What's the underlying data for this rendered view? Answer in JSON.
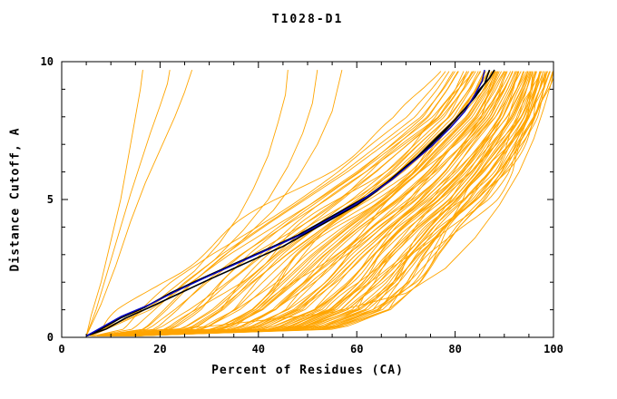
{
  "chart_data": {
    "type": "line",
    "title": "T1028-D1",
    "xlabel": "Percent of Residues (CA)",
    "ylabel": "Distance Cutoff, A",
    "xlim": [
      0,
      100
    ],
    "ylim": [
      0,
      10
    ],
    "x_major_ticks": [
      0,
      20,
      40,
      60,
      80,
      100
    ],
    "x_minor_step": 5,
    "y_major_ticks": [
      0,
      5,
      10
    ],
    "y_minor_step": 1,
    "grid": false,
    "legend": "none",
    "colors": {
      "band": "#FFA500",
      "highlight": "#000000",
      "reference": "#0000C8",
      "frame": "#000000",
      "background": "#FFFFFF"
    },
    "band": {
      "comment": "dense bundle of prediction curves, x = percent residues at y = distance cutoff (A)",
      "count": 85,
      "color": "#FFA500",
      "width": 0.9,
      "seed": 7,
      "skew": 0.6,
      "jitter": 0.045,
      "y_samples": [
        0,
        0.3,
        1,
        2,
        3,
        4,
        5,
        6,
        7,
        8,
        9,
        9.7
      ],
      "left_x": [
        5,
        7,
        10,
        16,
        24,
        33,
        42,
        51,
        59,
        67,
        72,
        75
      ],
      "right_x": [
        6,
        55,
        66,
        72,
        76,
        81,
        87,
        91,
        94,
        97,
        99,
        100
      ]
    },
    "series": [
      {
        "name": "outlier-steep-1",
        "color": "#FFA500",
        "width": 0.9,
        "points": [
          [
            5,
            0.05
          ],
          [
            6,
            0.8
          ],
          [
            8,
            2
          ],
          [
            10,
            3.5
          ],
          [
            12,
            5
          ],
          [
            13,
            6
          ],
          [
            14,
            7
          ],
          [
            15,
            8
          ],
          [
            16,
            9
          ],
          [
            16.5,
            9.7
          ]
        ]
      },
      {
        "name": "outlier-steep-2",
        "color": "#FFA500",
        "width": 0.9,
        "points": [
          [
            5,
            0.05
          ],
          [
            7,
            1
          ],
          [
            9,
            2.2
          ],
          [
            12,
            4
          ],
          [
            14,
            5.2
          ],
          [
            16,
            6.3
          ],
          [
            18,
            7.4
          ],
          [
            20,
            8.4
          ],
          [
            21.5,
            9.2
          ],
          [
            22,
            9.7
          ]
        ]
      },
      {
        "name": "outlier-steep-3",
        "color": "#FFA500",
        "width": 0.9,
        "points": [
          [
            5,
            0.05
          ],
          [
            8,
            1.2
          ],
          [
            11,
            2.6
          ],
          [
            14,
            4.2
          ],
          [
            17,
            5.6
          ],
          [
            20,
            6.8
          ],
          [
            23,
            8
          ],
          [
            25,
            8.9
          ],
          [
            26.5,
            9.7
          ]
        ]
      },
      {
        "name": "outlier-mid-1",
        "color": "#FFA500",
        "width": 0.9,
        "points": [
          [
            5,
            0.05
          ],
          [
            12,
            0.6
          ],
          [
            20,
            1.4
          ],
          [
            27,
            2.4
          ],
          [
            32,
            3.4
          ],
          [
            36,
            4.4
          ],
          [
            39,
            5.4
          ],
          [
            42,
            6.6
          ],
          [
            44,
            7.8
          ],
          [
            45.5,
            8.8
          ],
          [
            46,
            9.7
          ]
        ]
      },
      {
        "name": "outlier-mid-2",
        "color": "#FFA500",
        "width": 0.9,
        "points": [
          [
            5,
            0.05
          ],
          [
            15,
            0.8
          ],
          [
            24,
            1.8
          ],
          [
            31,
            2.8
          ],
          [
            37,
            3.9
          ],
          [
            42,
            5
          ],
          [
            46,
            6.2
          ],
          [
            49,
            7.4
          ],
          [
            51,
            8.5
          ],
          [
            52,
            9.7
          ]
        ]
      },
      {
        "name": "outlier-mid-3",
        "color": "#FFA500",
        "width": 0.9,
        "points": [
          [
            6,
            0.05
          ],
          [
            18,
            1
          ],
          [
            28,
            2.2
          ],
          [
            36,
            3.4
          ],
          [
            43,
            4.6
          ],
          [
            48,
            5.8
          ],
          [
            52,
            7
          ],
          [
            55,
            8.2
          ],
          [
            57,
            9.7
          ]
        ]
      },
      {
        "name": "outlier-right",
        "color": "#FFA500",
        "width": 0.9,
        "points": [
          [
            6,
            0.05
          ],
          [
            30,
            0.4
          ],
          [
            55,
            0.9
          ],
          [
            70,
            1.6
          ],
          [
            78,
            2.5
          ],
          [
            84,
            3.6
          ],
          [
            89,
            4.8
          ],
          [
            93,
            6
          ],
          [
            96,
            7.2
          ],
          [
            98,
            8.3
          ],
          [
            99.5,
            9.2
          ],
          [
            100,
            9.7
          ]
        ]
      },
      {
        "name": "highlight-black-1",
        "color": "#000000",
        "width": 1.6,
        "points": [
          [
            5,
            0.05
          ],
          [
            8,
            0.3
          ],
          [
            12,
            0.7
          ],
          [
            17,
            1.1
          ],
          [
            22,
            1.6
          ],
          [
            28,
            2.1
          ],
          [
            33,
            2.5
          ],
          [
            38,
            2.9
          ],
          [
            43,
            3.3
          ],
          [
            48,
            3.7
          ],
          [
            53,
            4.2
          ],
          [
            58,
            4.7
          ],
          [
            62,
            5.1
          ],
          [
            66,
            5.6
          ],
          [
            70,
            6.2
          ],
          [
            74,
            6.8
          ],
          [
            78,
            7.5
          ],
          [
            81,
            8.1
          ],
          [
            84,
            8.7
          ],
          [
            86,
            9.2
          ],
          [
            87,
            9.7
          ]
        ]
      },
      {
        "name": "highlight-black-2",
        "color": "#000000",
        "width": 1.6,
        "points": [
          [
            5,
            0.05
          ],
          [
            9,
            0.3
          ],
          [
            13,
            0.7
          ],
          [
            18,
            1.1
          ],
          [
            24,
            1.6
          ],
          [
            30,
            2.1
          ],
          [
            35,
            2.5
          ],
          [
            40,
            2.9
          ],
          [
            45,
            3.3
          ],
          [
            50,
            3.8
          ],
          [
            55,
            4.3
          ],
          [
            60,
            4.8
          ],
          [
            64,
            5.3
          ],
          [
            68,
            5.9
          ],
          [
            72,
            6.5
          ],
          [
            76,
            7.2
          ],
          [
            80,
            7.9
          ],
          [
            83,
            8.5
          ],
          [
            85,
            9.0
          ],
          [
            87,
            9.4
          ],
          [
            88,
            9.7
          ]
        ]
      },
      {
        "name": "reference-blue",
        "color": "#0000C8",
        "width": 1.4,
        "points": [
          [
            5,
            0.05
          ],
          [
            8,
            0.35
          ],
          [
            12,
            0.75
          ],
          [
            18,
            1.2
          ],
          [
            23,
            1.65
          ],
          [
            29,
            2.15
          ],
          [
            34,
            2.55
          ],
          [
            39,
            2.95
          ],
          [
            44,
            3.35
          ],
          [
            49,
            3.75
          ],
          [
            54,
            4.25
          ],
          [
            59,
            4.75
          ],
          [
            63,
            5.2
          ],
          [
            67,
            5.7
          ],
          [
            71,
            6.3
          ],
          [
            75,
            6.9
          ],
          [
            79,
            7.6
          ],
          [
            82,
            8.2
          ],
          [
            84,
            8.8
          ],
          [
            85.5,
            9.3
          ],
          [
            86,
            9.7
          ]
        ]
      }
    ]
  }
}
